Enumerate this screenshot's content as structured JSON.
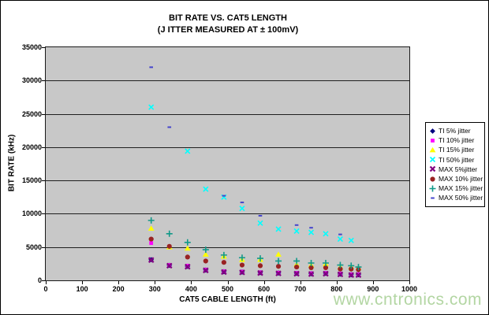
{
  "chart_data": {
    "type": "scatter",
    "title": "BIT RATE VS. CAT5 LENGTH",
    "subtitle": "(J ITTER MEASURED AT ± 100mV)",
    "xlabel": "CAT5 CABLE LENGTH (ft)",
    "ylabel": "BIT RATE (kHz)",
    "xlim": [
      0,
      1000
    ],
    "ylim": [
      0,
      35000
    ],
    "x_ticks": [
      0,
      100,
      200,
      300,
      400,
      500,
      600,
      700,
      800,
      900,
      1000
    ],
    "y_ticks": [
      0,
      5000,
      10000,
      15000,
      20000,
      25000,
      30000,
      35000
    ],
    "grid": "horizontal",
    "legend_position": "right",
    "plot_bg": "#c8c8c8",
    "series": [
      {
        "name": "TI 5% jitter",
        "marker": "diamond",
        "color": "#000080",
        "points": [
          [
            290,
            3100
          ],
          [
            340,
            2250
          ],
          [
            390,
            2100
          ],
          [
            440,
            1550
          ],
          [
            490,
            1300
          ],
          [
            540,
            1250
          ],
          [
            590,
            1150
          ],
          [
            640,
            1100
          ],
          [
            690,
            1050
          ],
          [
            730,
            1000
          ],
          [
            770,
            1050
          ],
          [
            810,
            950
          ],
          [
            840,
            850
          ],
          [
            860,
            850
          ]
        ]
      },
      {
        "name": "TI 10% jitter",
        "marker": "square",
        "color": "#ff00ff",
        "points": [
          [
            290,
            5600
          ],
          [
            340,
            2300
          ],
          [
            390,
            2200
          ],
          [
            440,
            1600
          ],
          [
            490,
            1350
          ],
          [
            540,
            1300
          ],
          [
            590,
            1200
          ],
          [
            640,
            1150
          ],
          [
            690,
            1100
          ],
          [
            730,
            1050
          ],
          [
            770,
            1100
          ],
          [
            810,
            1000
          ],
          [
            840,
            900
          ],
          [
            860,
            900
          ]
        ]
      },
      {
        "name": "TI 15% jitter",
        "marker": "triangle",
        "color": "#ffff00",
        "points": [
          [
            290,
            7800
          ],
          [
            340,
            5000
          ],
          [
            390,
            4800
          ],
          [
            440,
            3900
          ],
          [
            490,
            3600
          ],
          [
            540,
            3100
          ],
          [
            590,
            3100
          ],
          [
            640,
            3900
          ],
          [
            690,
            2400
          ],
          [
            730,
            2300
          ],
          [
            770,
            2450
          ],
          [
            810,
            2000
          ],
          [
            840,
            2000
          ],
          [
            860,
            1900
          ]
        ]
      },
      {
        "name": "TI 50% jitter",
        "marker": "x",
        "color": "#00ffff",
        "points": [
          [
            290,
            26000
          ],
          [
            390,
            19400
          ],
          [
            440,
            13700
          ],
          [
            490,
            12500
          ],
          [
            540,
            10800
          ],
          [
            590,
            8600
          ],
          [
            640,
            7700
          ],
          [
            690,
            7400
          ],
          [
            730,
            7200
          ],
          [
            770,
            7000
          ],
          [
            810,
            6200
          ],
          [
            840,
            6000
          ]
        ]
      },
      {
        "name": "MAX 5%jitter",
        "marker": "xstar",
        "color": "#800080",
        "points": [
          [
            290,
            3050
          ],
          [
            340,
            2200
          ],
          [
            390,
            2050
          ],
          [
            440,
            1500
          ],
          [
            490,
            1250
          ],
          [
            540,
            1200
          ],
          [
            590,
            1100
          ],
          [
            640,
            1050
          ],
          [
            690,
            1000
          ],
          [
            730,
            950
          ],
          [
            770,
            1000
          ],
          [
            810,
            900
          ],
          [
            840,
            800
          ],
          [
            860,
            800
          ]
        ]
      },
      {
        "name": "MAX 10% jitter",
        "marker": "circle",
        "color": "#992222",
        "points": [
          [
            290,
            6200
          ],
          [
            340,
            5100
          ],
          [
            390,
            3500
          ],
          [
            440,
            2900
          ],
          [
            490,
            2700
          ],
          [
            540,
            2300
          ],
          [
            590,
            2200
          ],
          [
            640,
            2100
          ],
          [
            690,
            2000
          ],
          [
            730,
            1900
          ],
          [
            770,
            1900
          ],
          [
            810,
            1700
          ],
          [
            840,
            1700
          ],
          [
            860,
            1600
          ]
        ]
      },
      {
        "name": "MAX 15% jitter",
        "marker": "plus",
        "color": "#119988",
        "points": [
          [
            290,
            9000
          ],
          [
            340,
            7000
          ],
          [
            390,
            5700
          ],
          [
            440,
            4600
          ],
          [
            490,
            3800
          ],
          [
            540,
            3400
          ],
          [
            590,
            3300
          ],
          [
            640,
            2900
          ],
          [
            690,
            2900
          ],
          [
            730,
            2600
          ],
          [
            770,
            2600
          ],
          [
            810,
            2300
          ],
          [
            840,
            2200
          ],
          [
            860,
            2000
          ]
        ]
      },
      {
        "name": "MAX 50% jitter",
        "marker": "dash",
        "color": "#4444cc",
        "points": [
          [
            290,
            32000
          ],
          [
            340,
            23000
          ],
          [
            490,
            12700
          ],
          [
            540,
            11700
          ],
          [
            590,
            9700
          ],
          [
            690,
            8300
          ],
          [
            730,
            7900
          ],
          [
            810,
            6900
          ]
        ]
      }
    ]
  },
  "watermark": {
    "text": "www.cntronics.com",
    "color": "#b3d6a3"
  }
}
